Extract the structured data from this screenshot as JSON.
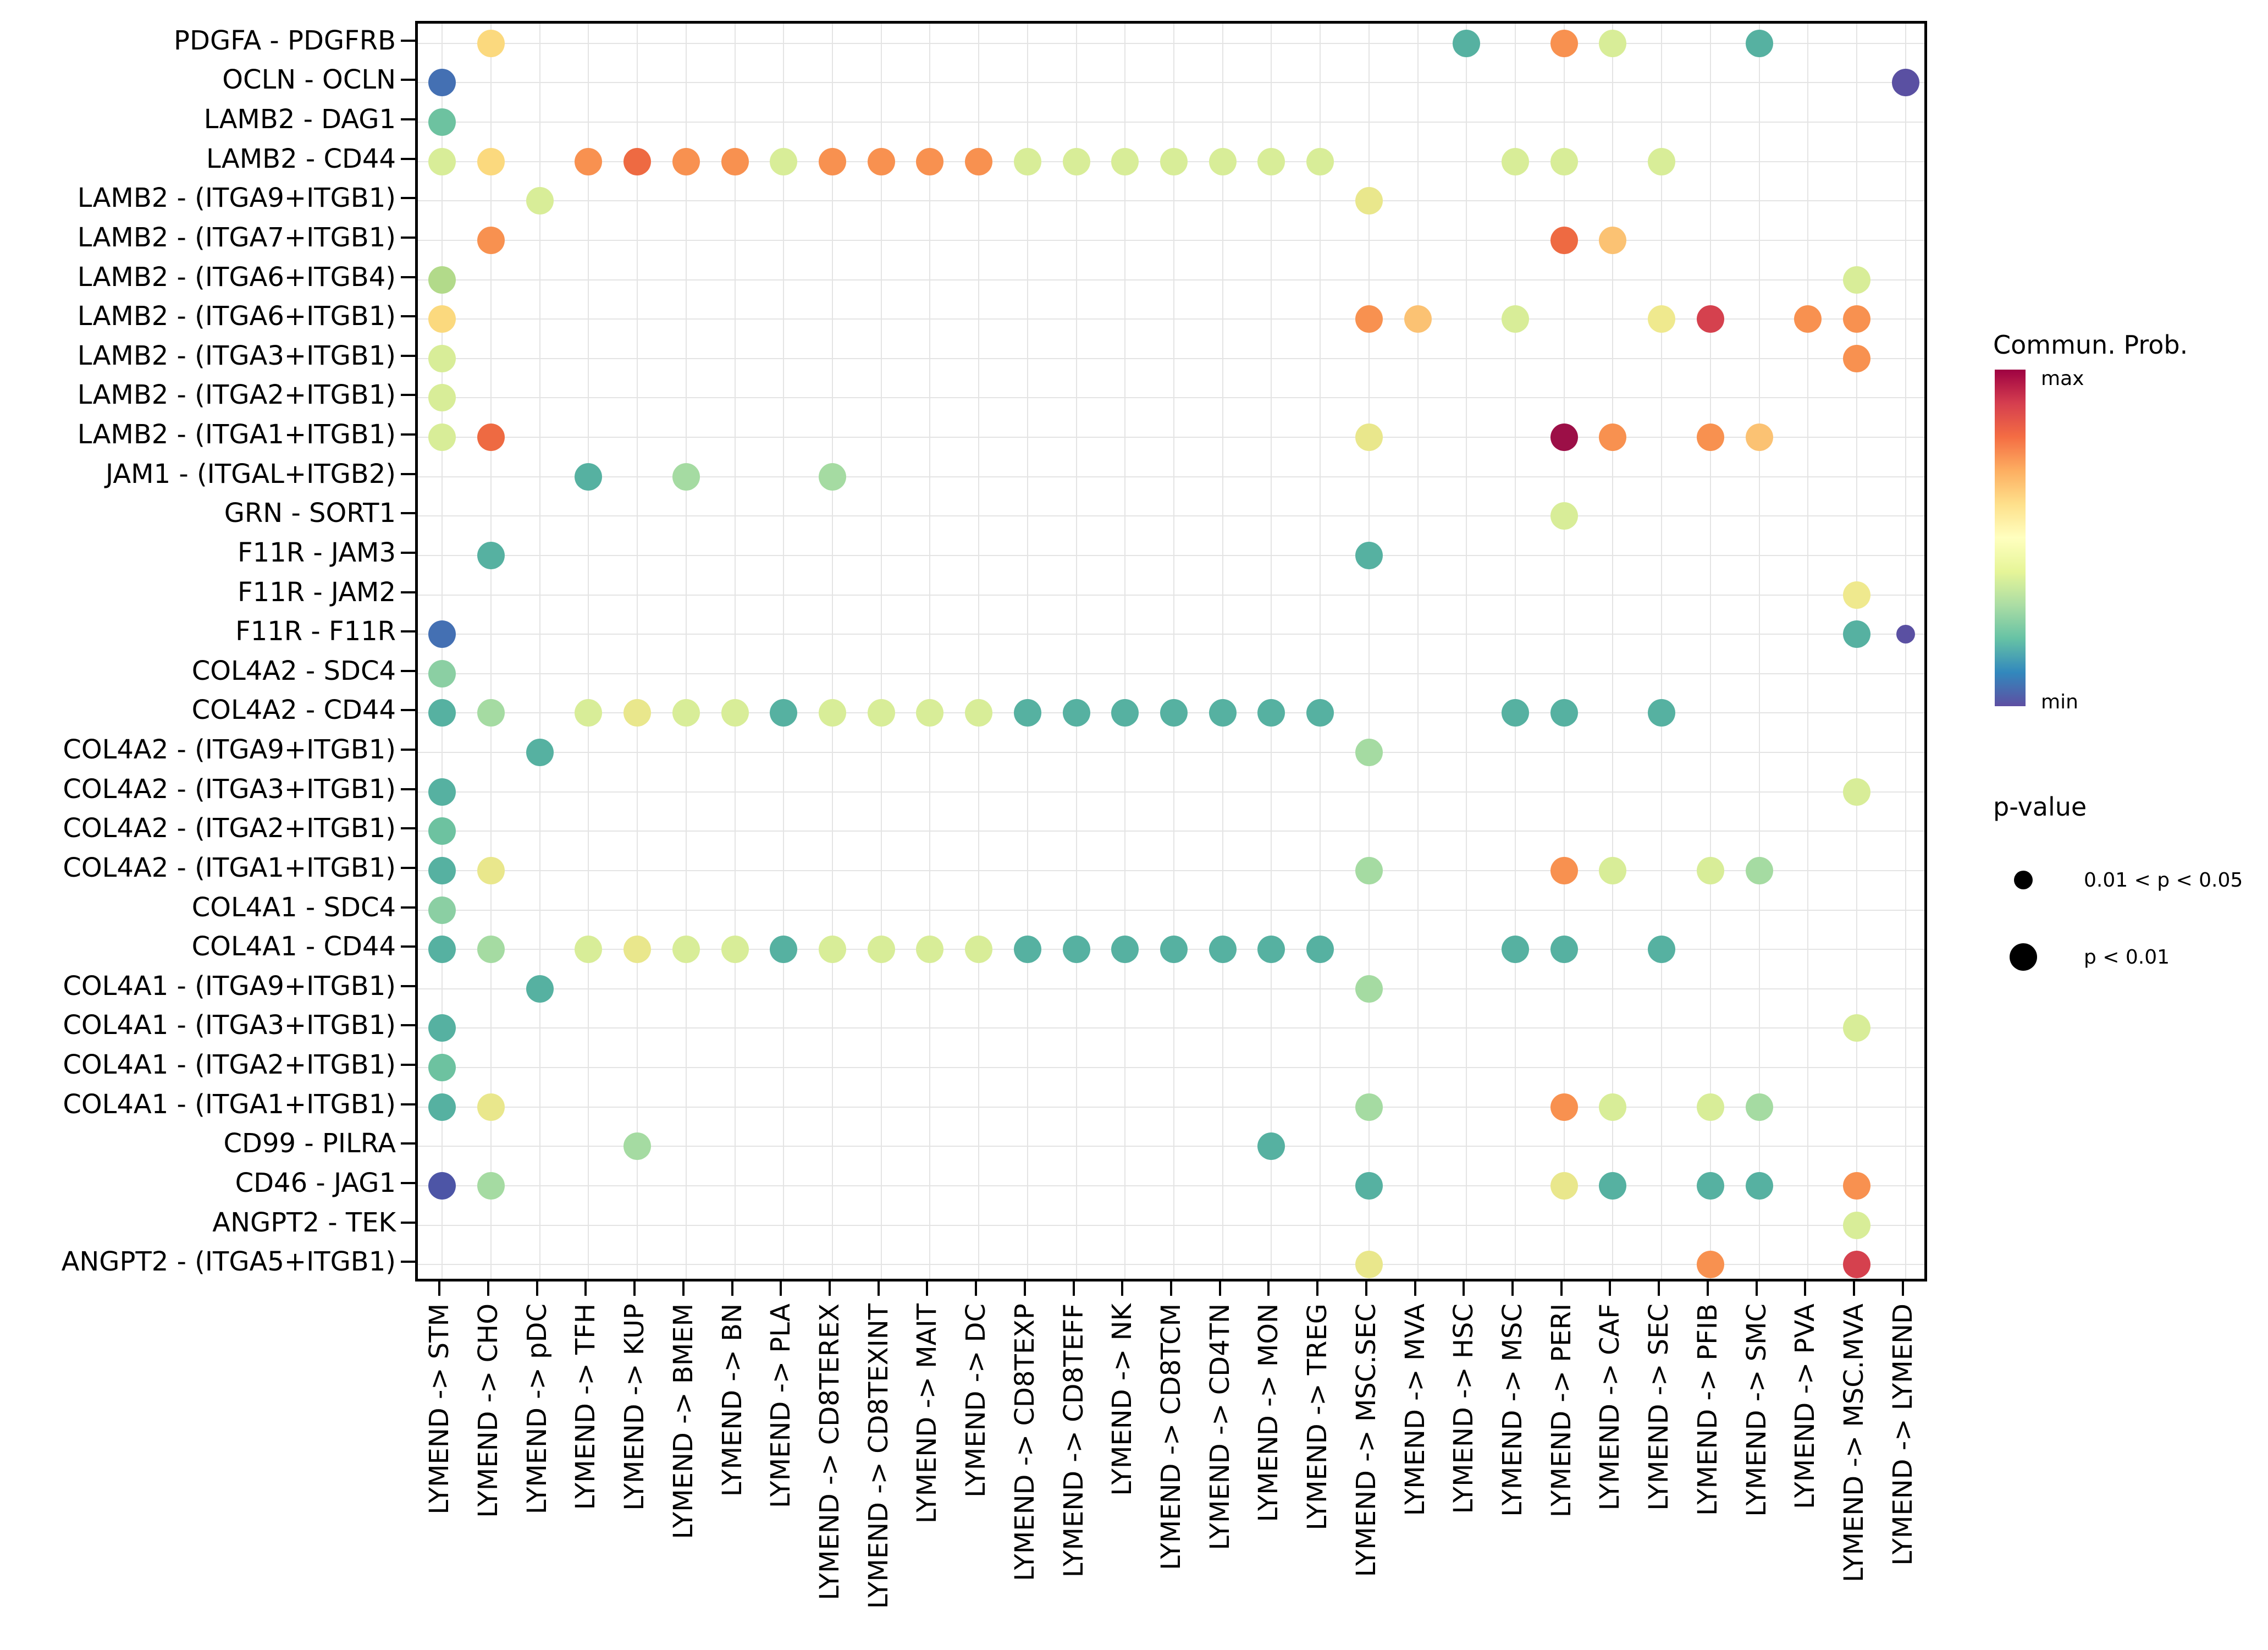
{
  "chart_data": {
    "type": "scatter",
    "subtype": "dot-plot (ligand-receptor communication bubble plot)",
    "title": "",
    "xlabel": "",
    "ylabel": "",
    "grid": "on",
    "x_categories": [
      "LYMEND -> STM",
      "LYMEND -> CHO",
      "LYMEND -> pDC",
      "LYMEND -> TFH",
      "LYMEND -> KUP",
      "LYMEND -> BMEM",
      "LYMEND -> BN",
      "LYMEND -> PLA",
      "LYMEND -> CD8TEREX",
      "LYMEND -> CD8TEXINT",
      "LYMEND -> MAIT",
      "LYMEND -> DC",
      "LYMEND -> CD8TEXP",
      "LYMEND -> CD8TEFF",
      "LYMEND -> NK",
      "LYMEND -> CD8TCM",
      "LYMEND -> CD4TN",
      "LYMEND -> MON",
      "LYMEND -> TREG",
      "LYMEND -> MSC.SEC",
      "LYMEND -> MVA",
      "LYMEND -> HSC",
      "LYMEND -> MSC",
      "LYMEND -> PERI",
      "LYMEND -> CAF",
      "LYMEND -> SEC",
      "LYMEND -> PFIB",
      "LYMEND -> SMC",
      "LYMEND -> PVA",
      "LYMEND -> MSC.MVA",
      "LYMEND -> LYMEND"
    ],
    "y_categories": [
      "PDGFA - PDGFRB",
      "OCLN - OCLN",
      "LAMB2 - DAG1",
      "LAMB2 - CD44",
      "LAMB2 - (ITGA9+ITGB1)",
      "LAMB2 - (ITGA7+ITGB1)",
      "LAMB2 - (ITGA6+ITGB4)",
      "LAMB2 - (ITGA6+ITGB1)",
      "LAMB2 - (ITGA3+ITGB1)",
      "LAMB2 - (ITGA2+ITGB1)",
      "LAMB2 - (ITGA1+ITGB1)",
      "JAM1 - (ITGAL+ITGB2)",
      "GRN - SORT1",
      "F11R - JAM3",
      "F11R - JAM2",
      "F11R - F11R",
      "COL4A2 - SDC4",
      "COL4A2 - CD44",
      "COL4A2 - (ITGA9+ITGB1)",
      "COL4A2 - (ITGA3+ITGB1)",
      "COL4A2 - (ITGA2+ITGB1)",
      "COL4A2 - (ITGA1+ITGB1)",
      "COL4A1 - SDC4",
      "COL4A1 - CD44",
      "COL4A1 - (ITGA9+ITGB1)",
      "COL4A1 - (ITGA3+ITGB1)",
      "COL4A1 - (ITGA2+ITGB1)",
      "COL4A1 - (ITGA1+ITGB1)",
      "CD99 - PILRA",
      "CD46 - JAG1",
      "ANGPT2 - TEK",
      "ANGPT2 - (ITGA5+ITGB1)"
    ],
    "colors": {
      "purple": "#5A50A2",
      "indigo": "#4D55A6",
      "blue": "#4470B3",
      "teal": "#56B1A1",
      "greenTeal": "#6DC2A0",
      "mediumGreen": "#8BCFA3",
      "green": "#A5DBA2",
      "yellowGreen": "#B2DA8A",
      "paleYellowGreen": "#D8ED98",
      "yellow": "#E9E78C",
      "ltYellow": "#EFE98E",
      "ltYellowOrange": "#FBD97E",
      "ltOrange": "#FBC273",
      "orange": "#F89150",
      "redOrange": "#EE6A42",
      "red": "#D5414E",
      "darkRed": "#9C0F47"
    },
    "dot_format": "[y_index, x_index, color_key, size_key]",
    "dot_sizes_px": {
      "l": 50,
      "s": 34
    },
    "p_value_of_size": {
      "l": "p < 0.01",
      "s": "0.01 < p < 0.05"
    },
    "points": [
      [
        0,
        1,
        "ltYellowOrange",
        "l"
      ],
      [
        0,
        21,
        "teal",
        "l"
      ],
      [
        0,
        23,
        "orange",
        "l"
      ],
      [
        0,
        24,
        "paleYellowGreen",
        "l"
      ],
      [
        0,
        27,
        "teal",
        "l"
      ],
      [
        1,
        0,
        "blue",
        "l"
      ],
      [
        1,
        30,
        "purple",
        "l"
      ],
      [
        2,
        0,
        "greenTeal",
        "l"
      ],
      [
        3,
        0,
        "paleYellowGreen",
        "l"
      ],
      [
        3,
        1,
        "ltYellowOrange",
        "l"
      ],
      [
        3,
        3,
        "orange",
        "l"
      ],
      [
        3,
        4,
        "redOrange",
        "l"
      ],
      [
        3,
        5,
        "orange",
        "l"
      ],
      [
        3,
        6,
        "orange",
        "l"
      ],
      [
        3,
        7,
        "paleYellowGreen",
        "l"
      ],
      [
        3,
        8,
        "orange",
        "l"
      ],
      [
        3,
        9,
        "orange",
        "l"
      ],
      [
        3,
        10,
        "orange",
        "l"
      ],
      [
        3,
        11,
        "orange",
        "l"
      ],
      [
        3,
        12,
        "paleYellowGreen",
        "l"
      ],
      [
        3,
        13,
        "paleYellowGreen",
        "l"
      ],
      [
        3,
        14,
        "paleYellowGreen",
        "l"
      ],
      [
        3,
        15,
        "paleYellowGreen",
        "l"
      ],
      [
        3,
        16,
        "paleYellowGreen",
        "l"
      ],
      [
        3,
        17,
        "paleYellowGreen",
        "l"
      ],
      [
        3,
        18,
        "paleYellowGreen",
        "l"
      ],
      [
        3,
        22,
        "paleYellowGreen",
        "l"
      ],
      [
        3,
        23,
        "paleYellowGreen",
        "l"
      ],
      [
        3,
        25,
        "paleYellowGreen",
        "l"
      ],
      [
        4,
        2,
        "paleYellowGreen",
        "l"
      ],
      [
        4,
        19,
        "yellow",
        "l"
      ],
      [
        5,
        1,
        "orange",
        "l"
      ],
      [
        5,
        23,
        "redOrange",
        "l"
      ],
      [
        5,
        24,
        "ltOrange",
        "l"
      ],
      [
        6,
        0,
        "yellowGreen",
        "l"
      ],
      [
        6,
        29,
        "paleYellowGreen",
        "l"
      ],
      [
        7,
        0,
        "ltYellowOrange",
        "l"
      ],
      [
        7,
        19,
        "orange",
        "l"
      ],
      [
        7,
        20,
        "ltOrange",
        "l"
      ],
      [
        7,
        22,
        "paleYellowGreen",
        "l"
      ],
      [
        7,
        25,
        "ltYellow",
        "l"
      ],
      [
        7,
        26,
        "red",
        "l"
      ],
      [
        7,
        28,
        "orange",
        "l"
      ],
      [
        7,
        29,
        "orange",
        "l"
      ],
      [
        8,
        0,
        "paleYellowGreen",
        "l"
      ],
      [
        8,
        29,
        "orange",
        "l"
      ],
      [
        9,
        0,
        "paleYellowGreen",
        "l"
      ],
      [
        10,
        0,
        "paleYellowGreen",
        "l"
      ],
      [
        10,
        1,
        "redOrange",
        "l"
      ],
      [
        10,
        19,
        "yellow",
        "l"
      ],
      [
        10,
        23,
        "darkRed",
        "l"
      ],
      [
        10,
        24,
        "orange",
        "l"
      ],
      [
        10,
        26,
        "orange",
        "l"
      ],
      [
        10,
        27,
        "ltOrange",
        "l"
      ],
      [
        11,
        3,
        "teal",
        "l"
      ],
      [
        11,
        5,
        "green",
        "l"
      ],
      [
        11,
        8,
        "green",
        "l"
      ],
      [
        12,
        23,
        "paleYellowGreen",
        "l"
      ],
      [
        13,
        1,
        "teal",
        "l"
      ],
      [
        13,
        19,
        "teal",
        "l"
      ],
      [
        14,
        29,
        "ltYellow",
        "l"
      ],
      [
        15,
        0,
        "blue",
        "l"
      ],
      [
        15,
        29,
        "teal",
        "l"
      ],
      [
        15,
        30,
        "purple",
        "s"
      ],
      [
        16,
        0,
        "mediumGreen",
        "l"
      ],
      [
        17,
        0,
        "teal",
        "l"
      ],
      [
        17,
        1,
        "green",
        "l"
      ],
      [
        17,
        3,
        "paleYellowGreen",
        "l"
      ],
      [
        17,
        4,
        "yellow",
        "l"
      ],
      [
        17,
        5,
        "paleYellowGreen",
        "l"
      ],
      [
        17,
        6,
        "paleYellowGreen",
        "l"
      ],
      [
        17,
        7,
        "teal",
        "l"
      ],
      [
        17,
        8,
        "paleYellowGreen",
        "l"
      ],
      [
        17,
        9,
        "paleYellowGreen",
        "l"
      ],
      [
        17,
        10,
        "paleYellowGreen",
        "l"
      ],
      [
        17,
        11,
        "paleYellowGreen",
        "l"
      ],
      [
        17,
        12,
        "teal",
        "l"
      ],
      [
        17,
        13,
        "teal",
        "l"
      ],
      [
        17,
        14,
        "teal",
        "l"
      ],
      [
        17,
        15,
        "teal",
        "l"
      ],
      [
        17,
        16,
        "teal",
        "l"
      ],
      [
        17,
        17,
        "teal",
        "l"
      ],
      [
        17,
        18,
        "teal",
        "l"
      ],
      [
        17,
        22,
        "teal",
        "l"
      ],
      [
        17,
        23,
        "teal",
        "l"
      ],
      [
        17,
        25,
        "teal",
        "l"
      ],
      [
        18,
        2,
        "teal",
        "l"
      ],
      [
        18,
        19,
        "green",
        "l"
      ],
      [
        19,
        0,
        "teal",
        "l"
      ],
      [
        19,
        29,
        "paleYellowGreen",
        "l"
      ],
      [
        20,
        0,
        "greenTeal",
        "l"
      ],
      [
        21,
        0,
        "teal",
        "l"
      ],
      [
        21,
        1,
        "yellow",
        "l"
      ],
      [
        21,
        19,
        "green",
        "l"
      ],
      [
        21,
        23,
        "orange",
        "l"
      ],
      [
        21,
        24,
        "paleYellowGreen",
        "l"
      ],
      [
        21,
        26,
        "paleYellowGreen",
        "l"
      ],
      [
        21,
        27,
        "green",
        "l"
      ],
      [
        22,
        0,
        "mediumGreen",
        "l"
      ],
      [
        23,
        0,
        "teal",
        "l"
      ],
      [
        23,
        1,
        "green",
        "l"
      ],
      [
        23,
        3,
        "paleYellowGreen",
        "l"
      ],
      [
        23,
        4,
        "yellow",
        "l"
      ],
      [
        23,
        5,
        "paleYellowGreen",
        "l"
      ],
      [
        23,
        6,
        "paleYellowGreen",
        "l"
      ],
      [
        23,
        7,
        "teal",
        "l"
      ],
      [
        23,
        8,
        "paleYellowGreen",
        "l"
      ],
      [
        23,
        9,
        "paleYellowGreen",
        "l"
      ],
      [
        23,
        10,
        "paleYellowGreen",
        "l"
      ],
      [
        23,
        11,
        "paleYellowGreen",
        "l"
      ],
      [
        23,
        12,
        "teal",
        "l"
      ],
      [
        23,
        13,
        "teal",
        "l"
      ],
      [
        23,
        14,
        "teal",
        "l"
      ],
      [
        23,
        15,
        "teal",
        "l"
      ],
      [
        23,
        16,
        "teal",
        "l"
      ],
      [
        23,
        17,
        "teal",
        "l"
      ],
      [
        23,
        18,
        "teal",
        "l"
      ],
      [
        23,
        22,
        "teal",
        "l"
      ],
      [
        23,
        23,
        "teal",
        "l"
      ],
      [
        23,
        25,
        "teal",
        "l"
      ],
      [
        24,
        2,
        "teal",
        "l"
      ],
      [
        24,
        19,
        "green",
        "l"
      ],
      [
        25,
        0,
        "teal",
        "l"
      ],
      [
        25,
        29,
        "paleYellowGreen",
        "l"
      ],
      [
        26,
        0,
        "greenTeal",
        "l"
      ],
      [
        27,
        0,
        "teal",
        "l"
      ],
      [
        27,
        1,
        "yellow",
        "l"
      ],
      [
        27,
        19,
        "green",
        "l"
      ],
      [
        27,
        23,
        "orange",
        "l"
      ],
      [
        27,
        24,
        "paleYellowGreen",
        "l"
      ],
      [
        27,
        26,
        "paleYellowGreen",
        "l"
      ],
      [
        27,
        27,
        "green",
        "l"
      ],
      [
        28,
        4,
        "green",
        "l"
      ],
      [
        28,
        17,
        "teal",
        "l"
      ],
      [
        29,
        0,
        "indigo",
        "l"
      ],
      [
        29,
        1,
        "green",
        "l"
      ],
      [
        29,
        19,
        "teal",
        "l"
      ],
      [
        29,
        23,
        "yellow",
        "l"
      ],
      [
        29,
        24,
        "teal",
        "l"
      ],
      [
        29,
        26,
        "teal",
        "l"
      ],
      [
        29,
        27,
        "teal",
        "l"
      ],
      [
        29,
        29,
        "orange",
        "l"
      ],
      [
        30,
        29,
        "paleYellowGreen",
        "l"
      ],
      [
        31,
        19,
        "yellow",
        "l"
      ],
      [
        31,
        26,
        "orange",
        "l"
      ],
      [
        31,
        29,
        "red",
        "l"
      ]
    ],
    "legend": {
      "color_legend": {
        "title": "Commun. Prob.",
        "max_label": "max",
        "min_label": "min",
        "gradient_top_to_bottom": [
          "#9E0142",
          "#D53E4F",
          "#F46D43",
          "#FDAE61",
          "#FEE08B",
          "#FFFFBF",
          "#E6F598",
          "#ABDDA4",
          "#66C2A5",
          "#3288BD",
          "#5E4FA2"
        ]
      },
      "size_legend": {
        "title": "p-value",
        "items": [
          {
            "label": "0.01 < p < 0.05",
            "size": "s"
          },
          {
            "label": "p < 0.01",
            "size": "l"
          }
        ]
      }
    }
  }
}
